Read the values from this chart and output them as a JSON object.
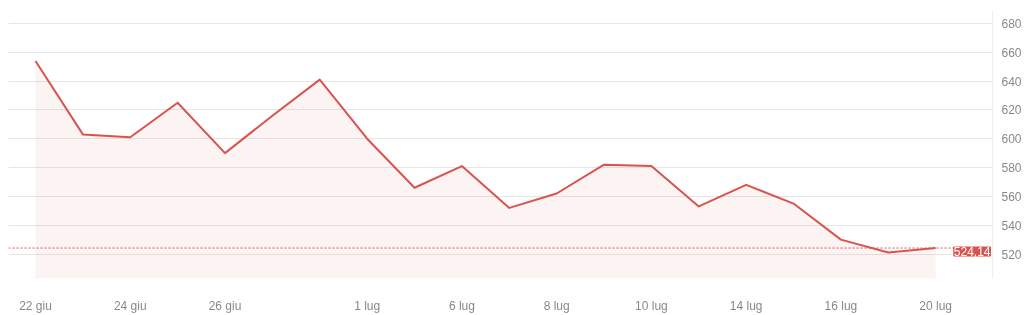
{
  "chart_data": {
    "type": "area",
    "categories": [
      "22 giu",
      null,
      "24 giu",
      null,
      "26 giu",
      null,
      null,
      "1 lug",
      null,
      "6 lug",
      null,
      "8 lug",
      null,
      "10 lug",
      null,
      "14 lug",
      null,
      "16 lug",
      null,
      "20 lug"
    ],
    "series": [
      {
        "color": "#d9534f",
        "values": [
          654,
          603,
          601,
          625,
          590,
          616,
          641,
          600,
          566,
          581,
          552,
          562,
          582,
          581,
          553,
          568,
          555,
          530,
          521,
          524.14
        ]
      }
    ],
    "ylim": [
      503,
      689
    ],
    "yticks": [
      520,
      540,
      560,
      580,
      600,
      620,
      640,
      660,
      680
    ],
    "grid": "y",
    "ref_lines": [
      {
        "axis": "y",
        "value": 524.14,
        "label": "524,14",
        "color": "#d9534f",
        "line_style": "dotted"
      }
    ]
  }
}
